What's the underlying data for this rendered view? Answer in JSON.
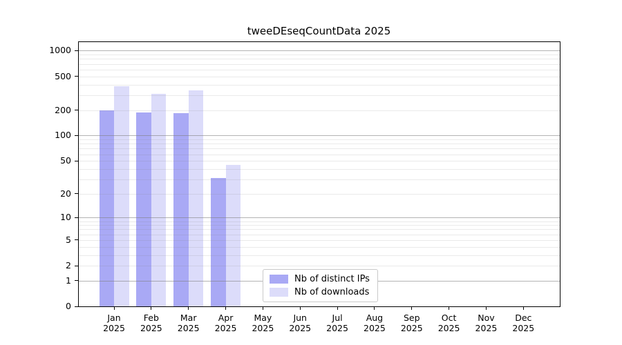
{
  "chart_data": {
    "type": "bar",
    "title": "tweeDEseqCountData 2025",
    "categories": [
      "Jan",
      "Feb",
      "Mar",
      "Apr",
      "May",
      "Jun",
      "Jul",
      "Aug",
      "Sep",
      "Oct",
      "Nov",
      "Dec"
    ],
    "x_tick_year": "2025",
    "series": [
      {
        "name": "Nb of distinct IPs",
        "color": "#a9a9f5",
        "values": [
          200,
          186,
          183,
          31,
          0,
          0,
          0,
          0,
          0,
          0,
          0,
          0
        ]
      },
      {
        "name": "Nb of downloads",
        "color": "#dcdcfa",
        "values": [
          385,
          312,
          340,
          45,
          0,
          0,
          0,
          0,
          0,
          0,
          0,
          0
        ]
      }
    ],
    "y_axis": {
      "scale": "log10(1+x)",
      "tick_values": [
        0,
        1,
        2,
        5,
        10,
        20,
        50,
        100,
        200,
        500,
        1000
      ],
      "major_grid_values": [
        1,
        10,
        100,
        1000
      ],
      "minor_grid_values": [
        2,
        3,
        4,
        5,
        6,
        7,
        8,
        9,
        20,
        30,
        40,
        50,
        60,
        70,
        80,
        90,
        200,
        300,
        400,
        500,
        600,
        700,
        800,
        900
      ],
      "ylim": [
        0,
        1330
      ]
    },
    "legend": {
      "position": "lower-center-inside"
    },
    "style": {
      "background": "#ffffff",
      "spine_color": "#000000",
      "major_grid_color": "rgba(128,128,128,0.6)",
      "minor_grid_color": "rgba(128,128,128,0.17)",
      "tick_label_color": "#000000"
    }
  }
}
